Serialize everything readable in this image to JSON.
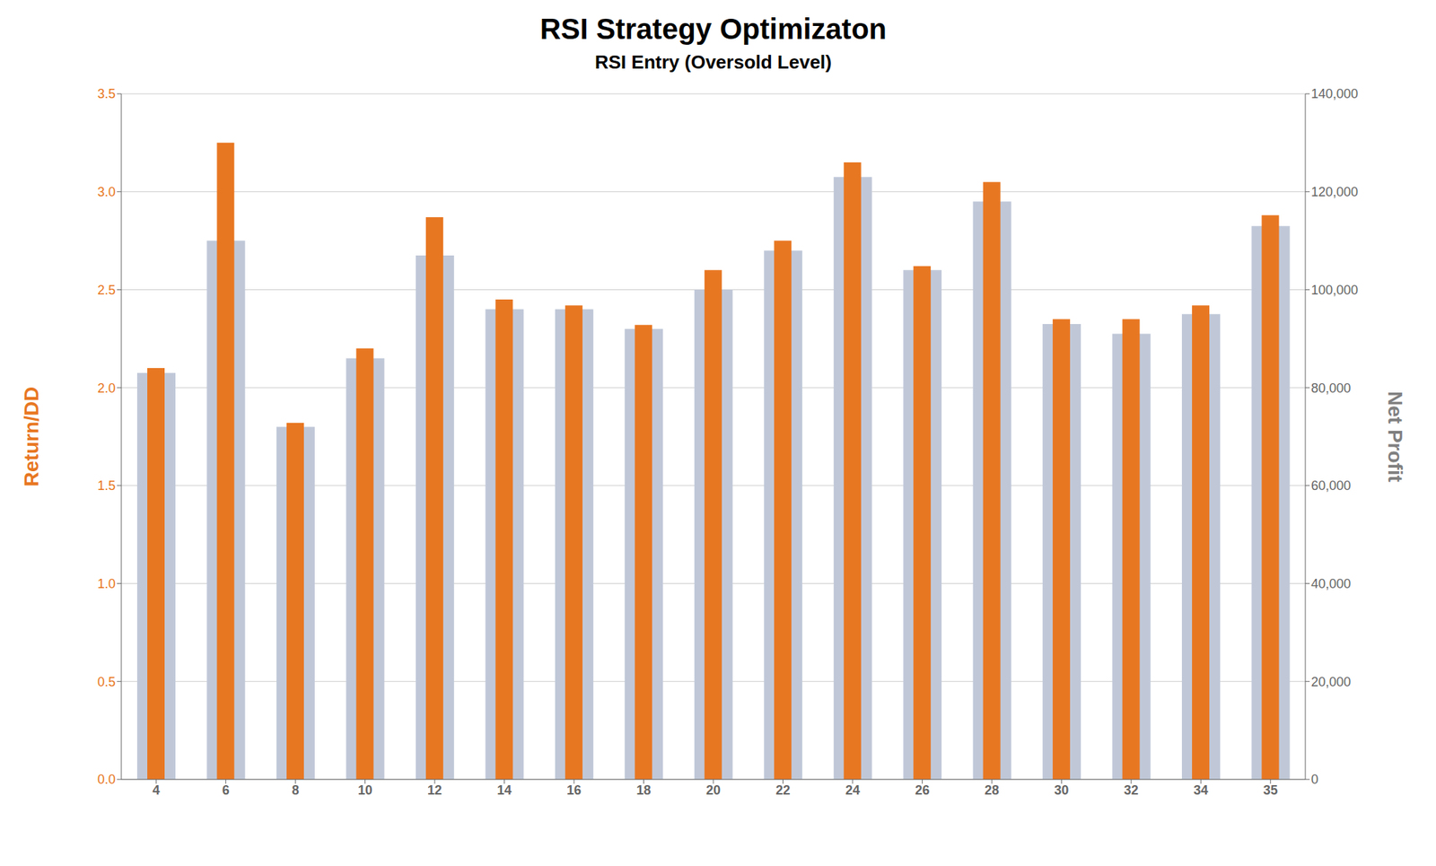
{
  "chart_data": {
    "type": "bar",
    "title": "RSI Strategy Optimizaton",
    "subtitle": "RSI Entry (Oversold Level)",
    "y_label": "Return/DD",
    "y2_label": "Net Profit",
    "categories": [
      "4",
      "6",
      "8",
      "10",
      "12",
      "14",
      "16",
      "18",
      "20",
      "22",
      "24",
      "26",
      "28",
      "30",
      "32",
      "34",
      "35"
    ],
    "series": [
      {
        "color": "#C0C8D8",
        "axis": "y2",
        "values": [
          83000,
          110000,
          72000,
          86000,
          107000,
          96000,
          96000,
          92000,
          100000,
          108000,
          123000,
          104000,
          118000,
          93000,
          91000,
          95000,
          113000
        ]
      },
      {
        "color": "#E87722",
        "values": [
          2.1,
          3.25,
          1.82,
          2.2,
          2.87,
          2.45,
          2.42,
          2.32,
          2.6,
          2.75,
          3.15,
          2.62,
          3.05,
          2.35,
          2.35,
          2.42,
          2.88
        ]
      }
    ],
    "ylim": [
      0,
      3.5
    ],
    "yticks": [
      {
        "value": 0,
        "label": "0.0"
      },
      0.5,
      {
        "value": 1,
        "label": "1.0"
      },
      1.5,
      {
        "value": 2,
        "label": "2.0"
      },
      2.5,
      {
        "value": 3,
        "label": "3.0"
      },
      3.5
    ],
    "y2lim": [
      0,
      140000
    ],
    "y2ticks": [
      0,
      {
        "value": 20000,
        "label": "20,000"
      },
      {
        "value": 40000,
        "label": "40,000"
      },
      {
        "value": 60000,
        "label": "60,000"
      },
      {
        "value": 80000,
        "label": "80,000"
      },
      {
        "value": 100000,
        "label": "100,000"
      },
      {
        "value": 120000,
        "label": "120,000"
      },
      {
        "value": 140000,
        "label": "140,000"
      }
    ],
    "grid": true
  }
}
